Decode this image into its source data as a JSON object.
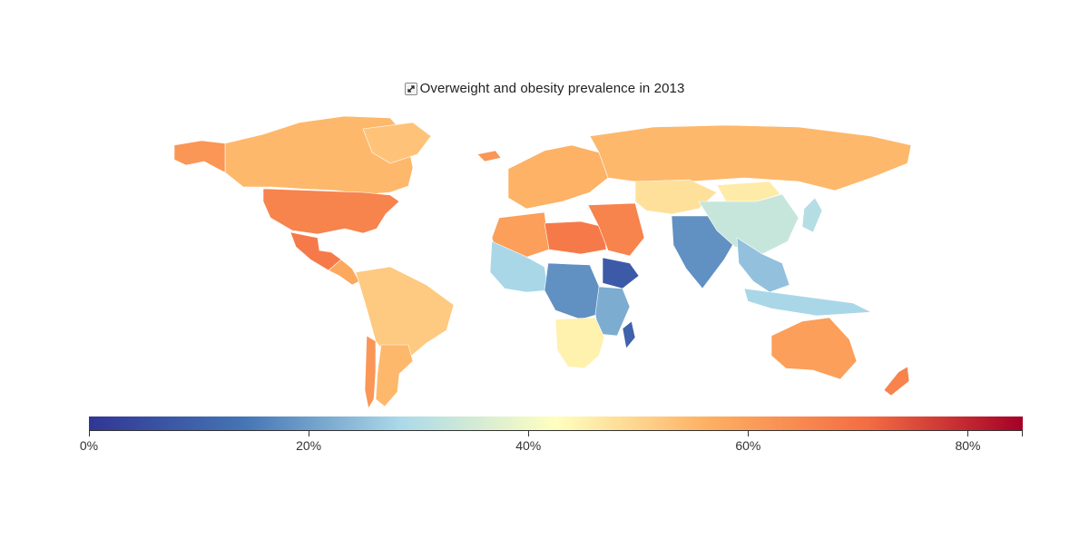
{
  "title": "Overweight and obesity prevalence in 2013",
  "expand_icon": "expand-arrows-icon",
  "colorscale": {
    "stops": [
      "#313695",
      "#4575b4",
      "#abd9e9",
      "#ffffbf",
      "#fdae61",
      "#f46d43",
      "#a50026"
    ],
    "min": 0,
    "max": 85,
    "ticks": [
      {
        "value": 0,
        "label": "0%"
      },
      {
        "value": 20,
        "label": "20%"
      },
      {
        "value": 40,
        "label": "40%"
      },
      {
        "value": 60,
        "label": "60%"
      },
      {
        "value": 80,
        "label": "80%"
      }
    ]
  },
  "region_values": {
    "canada": 55,
    "alaska": 62,
    "greenland": 53,
    "usa": 66,
    "mexico": 68,
    "central-america": 58,
    "south-america": 52,
    "argentina": 55,
    "chile": 62,
    "europe": 56,
    "russia": 55,
    "iceland": 62,
    "north-africa": 60,
    "egypt-libya": 68,
    "west-africa": 28,
    "central-africa": 18,
    "east-africa": 22,
    "ethiopia": 8,
    "southern-africa": 45,
    "madagascar": 10,
    "middle-east": 66,
    "central-asia": 48,
    "south-asia": 18,
    "china": 33,
    "mongolia": 46,
    "southeast-asia": 25,
    "japan": 30,
    "indonesia": 28,
    "australia": 60,
    "new-zealand": 66
  }
}
